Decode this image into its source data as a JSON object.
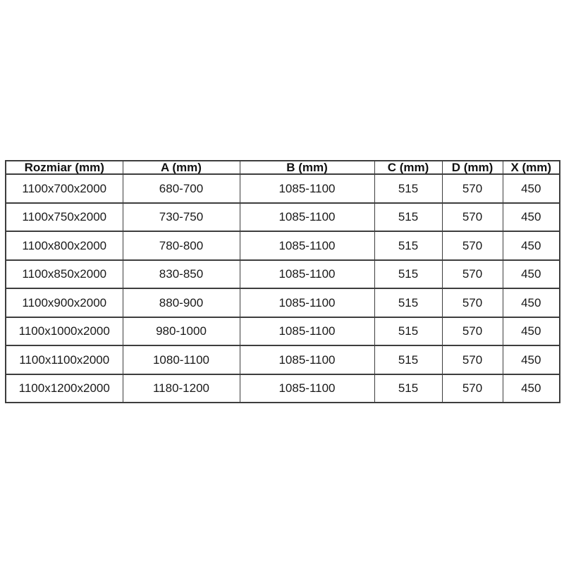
{
  "colors": {
    "background": "#ffffff",
    "border": "#3d3d3d",
    "header_text": "#111111",
    "cell_text": "#1a1a1a"
  },
  "chart_data": {
    "type": "table",
    "title": "",
    "columns": [
      "Rozmiar (mm)",
      "A (mm)",
      "B (mm)",
      "C (mm)",
      "D (mm)",
      "X (mm)"
    ],
    "rows": [
      [
        "1100x700x2000",
        "680-700",
        "1085-1100",
        "515",
        "570",
        "450"
      ],
      [
        "1100x750x2000",
        "730-750",
        "1085-1100",
        "515",
        "570",
        "450"
      ],
      [
        "1100x800x2000",
        "780-800",
        "1085-1100",
        "515",
        "570",
        "450"
      ],
      [
        "1100x850x2000",
        "830-850",
        "1085-1100",
        "515",
        "570",
        "450"
      ],
      [
        "1100x900x2000",
        "880-900",
        "1085-1100",
        "515",
        "570",
        "450"
      ],
      [
        "1100x1000x2000",
        "980-1000",
        "1085-1100",
        "515",
        "570",
        "450"
      ],
      [
        "1100x1100x2000",
        "1080-1100",
        "1085-1100",
        "515",
        "570",
        "450"
      ],
      [
        "1100x1200x2000",
        "1180-1200",
        "1085-1100",
        "515",
        "570",
        "450"
      ]
    ]
  }
}
